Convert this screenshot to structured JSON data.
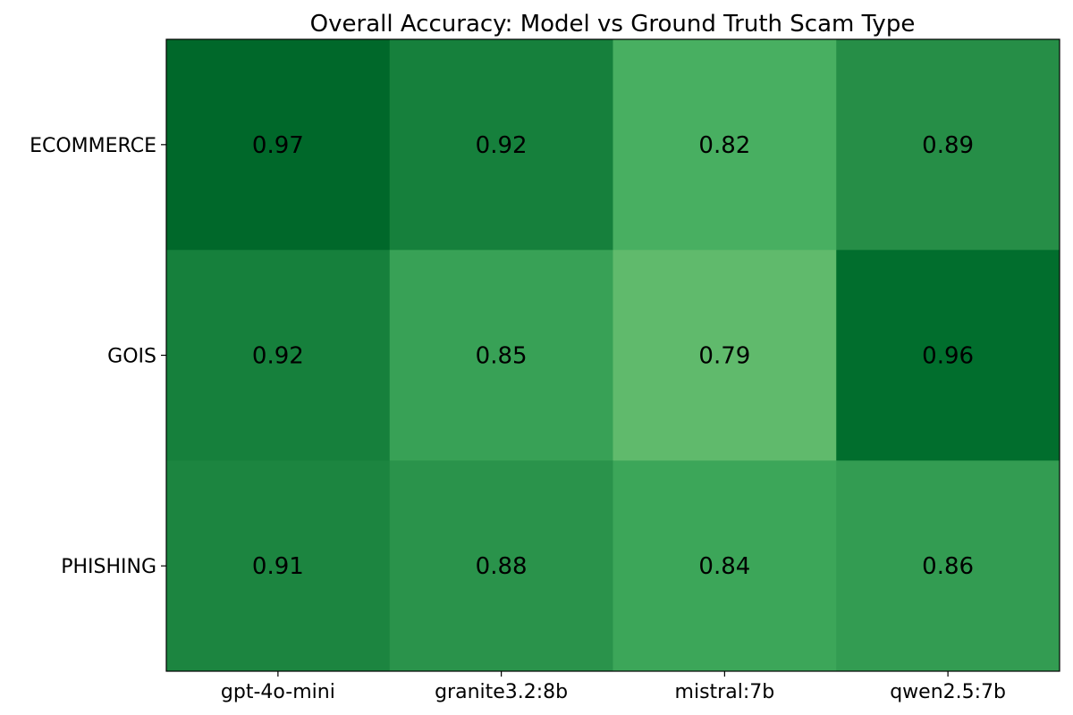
{
  "chart_data": {
    "type": "heatmap",
    "title": "Overall Accuracy: Model vs Ground Truth Scam Type",
    "xlabel": "",
    "ylabel": "",
    "x_categories": [
      "gpt-4o-mini",
      "granite3.2:8b",
      "mistral:7b",
      "qwen2.5:7b"
    ],
    "y_categories": [
      "ECOMMERCE",
      "GOIS",
      "PHISHING"
    ],
    "values": [
      [
        0.97,
        0.92,
        0.82,
        0.89
      ],
      [
        0.92,
        0.85,
        0.79,
        0.96
      ],
      [
        0.91,
        0.88,
        0.84,
        0.86
      ]
    ],
    "value_labels": [
      [
        "0.97",
        "0.92",
        "0.82",
        "0.89"
      ],
      [
        "0.92",
        "0.85",
        "0.79",
        "0.96"
      ],
      [
        "0.91",
        "0.88",
        "0.84",
        "0.86"
      ]
    ],
    "colormap": "Greens",
    "vmin": 0.79,
    "vmax": 0.97,
    "grid": false,
    "legend": "none"
  }
}
